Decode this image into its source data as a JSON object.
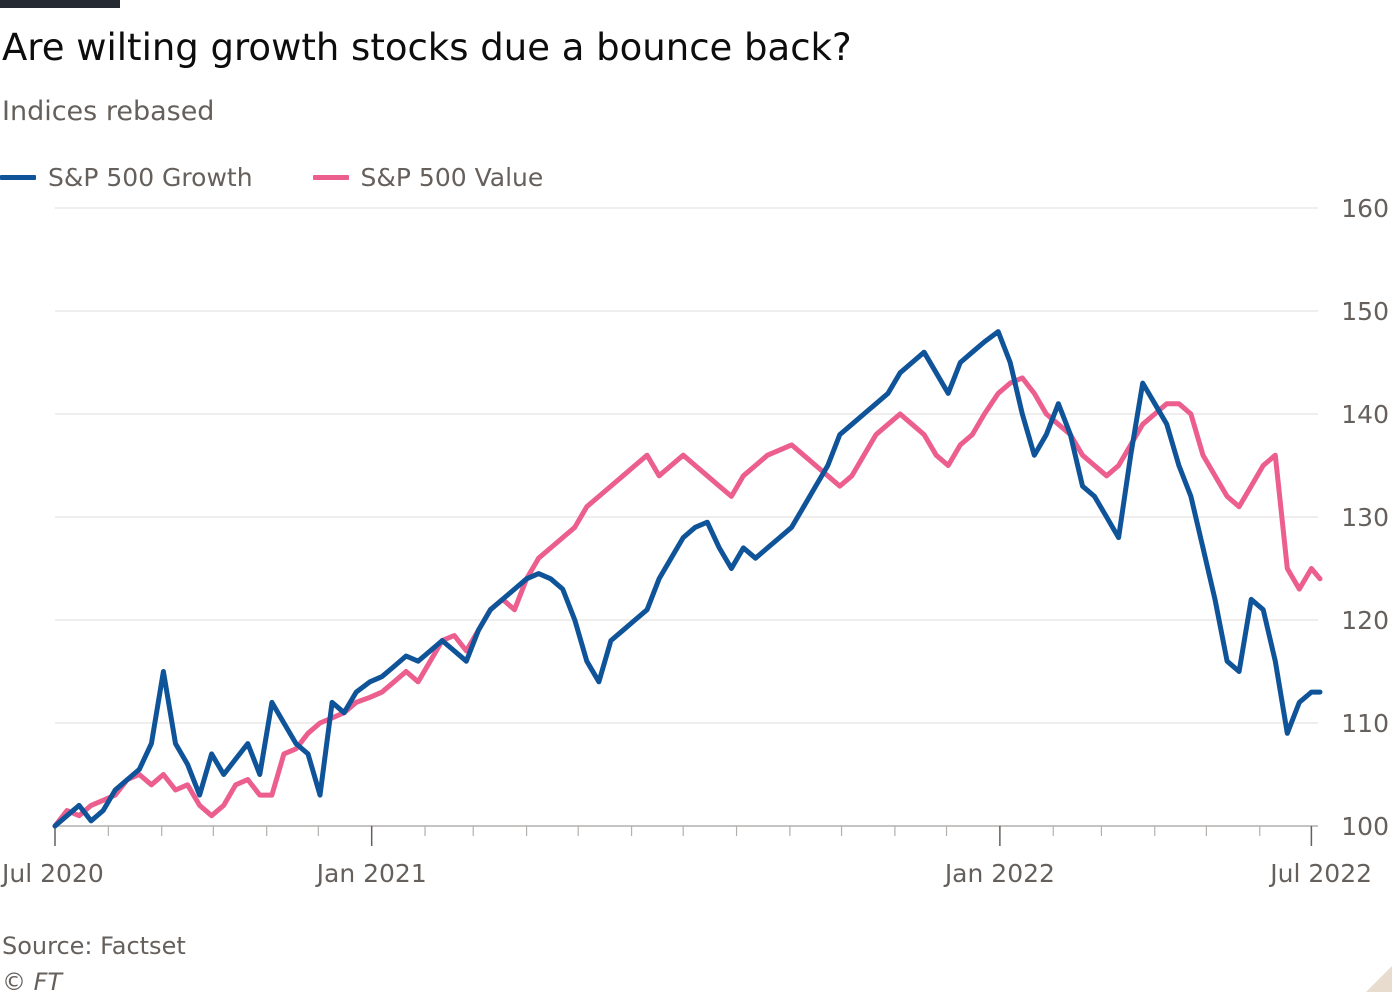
{
  "header": {
    "title": "Are wilting growth stocks due a bounce back?",
    "subtitle": "Indices rebased"
  },
  "footer": {
    "source": "Source: Factset",
    "copyright": "© FT"
  },
  "chart_data": {
    "type": "line",
    "title": "Are wilting growth stocks due a bounce back?",
    "subtitle": "Indices rebased",
    "xlabel": "",
    "ylabel": "",
    "y_ticks": [
      100,
      110,
      120,
      130,
      140,
      150,
      160
    ],
    "ylim": [
      100,
      160
    ],
    "xlim": [
      "2020-07-01",
      "2022-07-06"
    ],
    "x_tick_labels": [
      {
        "date": "2020-07-01",
        "label": "Jul 2020"
      },
      {
        "date": "2021-01-01",
        "label": "Jan 2021"
      },
      {
        "date": "2022-01-01",
        "label": "Jan 2022"
      },
      {
        "date": "2022-07-01",
        "label": "Jul 2022"
      }
    ],
    "x_minor_ticks": [
      "2020-08-01",
      "2020-09-01",
      "2020-10-01",
      "2020-11-01",
      "2020-12-01",
      "2021-02-01",
      "2021-03-01",
      "2021-04-01",
      "2021-05-01",
      "2021-06-01",
      "2021-07-01",
      "2021-08-01",
      "2021-09-01",
      "2021-10-01",
      "2021-11-01",
      "2021-12-01",
      "2022-02-01",
      "2022-03-01",
      "2022-04-01",
      "2022-05-01",
      "2022-06-01"
    ],
    "grid": true,
    "legend_position": "top-left",
    "series": [
      {
        "name": "S&P 500 Growth",
        "color": "#0f5499",
        "points": [
          [
            "2020-07-01",
            100
          ],
          [
            "2020-07-08",
            101
          ],
          [
            "2020-07-15",
            102
          ],
          [
            "2020-07-22",
            100.5
          ],
          [
            "2020-07-29",
            101.5
          ],
          [
            "2020-08-05",
            103.5
          ],
          [
            "2020-08-12",
            104.5
          ],
          [
            "2020-08-19",
            105.5
          ],
          [
            "2020-08-26",
            108
          ],
          [
            "2020-09-02",
            115
          ],
          [
            "2020-09-09",
            108
          ],
          [
            "2020-09-16",
            106
          ],
          [
            "2020-09-23",
            103
          ],
          [
            "2020-09-30",
            107
          ],
          [
            "2020-10-07",
            105
          ],
          [
            "2020-10-14",
            106.5
          ],
          [
            "2020-10-21",
            108
          ],
          [
            "2020-10-28",
            105
          ],
          [
            "2020-11-04",
            112
          ],
          [
            "2020-11-11",
            110
          ],
          [
            "2020-11-18",
            108
          ],
          [
            "2020-11-25",
            107
          ],
          [
            "2020-12-02",
            103
          ],
          [
            "2020-12-09",
            112
          ],
          [
            "2020-12-16",
            111
          ],
          [
            "2020-12-23",
            113
          ],
          [
            "2020-12-31",
            114
          ],
          [
            "2021-01-07",
            114.5
          ],
          [
            "2021-01-14",
            115.5
          ],
          [
            "2021-01-21",
            116.5
          ],
          [
            "2021-01-28",
            116
          ],
          [
            "2021-02-04",
            117
          ],
          [
            "2021-02-11",
            118
          ],
          [
            "2021-02-18",
            117
          ],
          [
            "2021-02-25",
            116
          ],
          [
            "2021-03-04",
            119
          ],
          [
            "2021-03-11",
            121
          ],
          [
            "2021-03-18",
            122
          ],
          [
            "2021-03-25",
            123
          ],
          [
            "2021-04-01",
            124
          ],
          [
            "2021-04-08",
            124.5
          ],
          [
            "2021-04-15",
            124
          ],
          [
            "2021-04-22",
            123
          ],
          [
            "2021-04-29",
            120
          ],
          [
            "2021-05-06",
            116
          ],
          [
            "2021-05-13",
            114
          ],
          [
            "2021-05-20",
            118
          ],
          [
            "2021-05-27",
            119
          ],
          [
            "2021-06-03",
            120
          ],
          [
            "2021-06-10",
            121
          ],
          [
            "2021-06-17",
            124
          ],
          [
            "2021-06-24",
            126
          ],
          [
            "2021-07-01",
            128
          ],
          [
            "2021-07-08",
            129
          ],
          [
            "2021-07-15",
            129.5
          ],
          [
            "2021-07-22",
            127
          ],
          [
            "2021-07-29",
            125
          ],
          [
            "2021-08-05",
            127
          ],
          [
            "2021-08-12",
            126
          ],
          [
            "2021-08-19",
            127
          ],
          [
            "2021-08-26",
            128
          ],
          [
            "2021-09-02",
            129
          ],
          [
            "2021-09-09",
            131
          ],
          [
            "2021-09-16",
            133
          ],
          [
            "2021-09-23",
            135
          ],
          [
            "2021-09-30",
            138
          ],
          [
            "2021-10-07",
            139
          ],
          [
            "2021-10-14",
            140
          ],
          [
            "2021-10-21",
            141
          ],
          [
            "2021-10-28",
            142
          ],
          [
            "2021-11-04",
            144
          ],
          [
            "2021-11-11",
            145
          ],
          [
            "2021-11-18",
            146
          ],
          [
            "2021-11-25",
            144
          ],
          [
            "2021-12-02",
            142
          ],
          [
            "2021-12-09",
            145
          ],
          [
            "2021-12-16",
            146
          ],
          [
            "2021-12-23",
            147
          ],
          [
            "2021-12-31",
            148
          ],
          [
            "2022-01-07",
            145
          ],
          [
            "2022-01-14",
            140
          ],
          [
            "2022-01-21",
            136
          ],
          [
            "2022-01-28",
            138
          ],
          [
            "2022-02-04",
            141
          ],
          [
            "2022-02-11",
            138
          ],
          [
            "2022-02-18",
            133
          ],
          [
            "2022-02-25",
            132
          ],
          [
            "2022-03-04",
            130
          ],
          [
            "2022-03-11",
            128
          ],
          [
            "2022-03-18",
            136
          ],
          [
            "2022-03-25",
            143
          ],
          [
            "2022-04-01",
            141
          ],
          [
            "2022-04-08",
            139
          ],
          [
            "2022-04-15",
            135
          ],
          [
            "2022-04-22",
            132
          ],
          [
            "2022-04-29",
            127
          ],
          [
            "2022-05-06",
            122
          ],
          [
            "2022-05-13",
            116
          ],
          [
            "2022-05-20",
            115
          ],
          [
            "2022-05-27",
            122
          ],
          [
            "2022-06-03",
            121
          ],
          [
            "2022-06-10",
            116
          ],
          [
            "2022-06-17",
            109
          ],
          [
            "2022-06-24",
            112
          ],
          [
            "2022-07-01",
            113
          ],
          [
            "2022-07-06",
            113
          ]
        ]
      },
      {
        "name": "S&P 500 Value",
        "color": "#eb5e8d",
        "points": [
          [
            "2020-07-01",
            100
          ],
          [
            "2020-07-08",
            101.5
          ],
          [
            "2020-07-15",
            101
          ],
          [
            "2020-07-22",
            102
          ],
          [
            "2020-07-29",
            102.5
          ],
          [
            "2020-08-05",
            103
          ],
          [
            "2020-08-12",
            104.5
          ],
          [
            "2020-08-19",
            105
          ],
          [
            "2020-08-26",
            104
          ],
          [
            "2020-09-02",
            105
          ],
          [
            "2020-09-09",
            103.5
          ],
          [
            "2020-09-16",
            104
          ],
          [
            "2020-09-23",
            102
          ],
          [
            "2020-09-30",
            101
          ],
          [
            "2020-10-07",
            102
          ],
          [
            "2020-10-14",
            104
          ],
          [
            "2020-10-21",
            104.5
          ],
          [
            "2020-10-28",
            103
          ],
          [
            "2020-11-04",
            103
          ],
          [
            "2020-11-11",
            107
          ],
          [
            "2020-11-18",
            107.5
          ],
          [
            "2020-11-25",
            109
          ],
          [
            "2020-12-02",
            110
          ],
          [
            "2020-12-09",
            110.5
          ],
          [
            "2020-12-16",
            111
          ],
          [
            "2020-12-23",
            112
          ],
          [
            "2020-12-31",
            112.5
          ],
          [
            "2021-01-07",
            113
          ],
          [
            "2021-01-14",
            114
          ],
          [
            "2021-01-21",
            115
          ],
          [
            "2021-01-28",
            114
          ],
          [
            "2021-02-04",
            116
          ],
          [
            "2021-02-11",
            118
          ],
          [
            "2021-02-18",
            118.5
          ],
          [
            "2021-02-25",
            117
          ],
          [
            "2021-03-04",
            119
          ],
          [
            "2021-03-11",
            121
          ],
          [
            "2021-03-18",
            122
          ],
          [
            "2021-03-25",
            121
          ],
          [
            "2021-04-01",
            124
          ],
          [
            "2021-04-08",
            126
          ],
          [
            "2021-04-15",
            127
          ],
          [
            "2021-04-22",
            128
          ],
          [
            "2021-04-29",
            129
          ],
          [
            "2021-05-06",
            131
          ],
          [
            "2021-05-13",
            132
          ],
          [
            "2021-05-20",
            133
          ],
          [
            "2021-05-27",
            134
          ],
          [
            "2021-06-03",
            135
          ],
          [
            "2021-06-10",
            136
          ],
          [
            "2021-06-17",
            134
          ],
          [
            "2021-06-24",
            135
          ],
          [
            "2021-07-01",
            136
          ],
          [
            "2021-07-08",
            135
          ],
          [
            "2021-07-15",
            134
          ],
          [
            "2021-07-22",
            133
          ],
          [
            "2021-07-29",
            132
          ],
          [
            "2021-08-05",
            134
          ],
          [
            "2021-08-12",
            135
          ],
          [
            "2021-08-19",
            136
          ],
          [
            "2021-08-26",
            136.5
          ],
          [
            "2021-09-02",
            137
          ],
          [
            "2021-09-09",
            136
          ],
          [
            "2021-09-16",
            135
          ],
          [
            "2021-09-23",
            134
          ],
          [
            "2021-09-30",
            133
          ],
          [
            "2021-10-07",
            134
          ],
          [
            "2021-10-14",
            136
          ],
          [
            "2021-10-21",
            138
          ],
          [
            "2021-10-28",
            139
          ],
          [
            "2021-11-04",
            140
          ],
          [
            "2021-11-11",
            139
          ],
          [
            "2021-11-18",
            138
          ],
          [
            "2021-11-25",
            136
          ],
          [
            "2021-12-02",
            135
          ],
          [
            "2021-12-09",
            137
          ],
          [
            "2021-12-16",
            138
          ],
          [
            "2021-12-23",
            140
          ],
          [
            "2021-12-31",
            142
          ],
          [
            "2022-01-07",
            143
          ],
          [
            "2022-01-14",
            143.5
          ],
          [
            "2022-01-21",
            142
          ],
          [
            "2022-01-28",
            140
          ],
          [
            "2022-02-04",
            139
          ],
          [
            "2022-02-11",
            138
          ],
          [
            "2022-02-18",
            136
          ],
          [
            "2022-02-25",
            135
          ],
          [
            "2022-03-04",
            134
          ],
          [
            "2022-03-11",
            135
          ],
          [
            "2022-03-18",
            137
          ],
          [
            "2022-03-25",
            139
          ],
          [
            "2022-04-01",
            140
          ],
          [
            "2022-04-08",
            141
          ],
          [
            "2022-04-15",
            141
          ],
          [
            "2022-04-22",
            140
          ],
          [
            "2022-04-29",
            136
          ],
          [
            "2022-05-06",
            134
          ],
          [
            "2022-05-13",
            132
          ],
          [
            "2022-05-20",
            131
          ],
          [
            "2022-05-27",
            133
          ],
          [
            "2022-06-03",
            135
          ],
          [
            "2022-06-10",
            136
          ],
          [
            "2022-06-17",
            125
          ],
          [
            "2022-06-24",
            123
          ],
          [
            "2022-07-01",
            125
          ],
          [
            "2022-07-06",
            124
          ]
        ]
      }
    ]
  }
}
